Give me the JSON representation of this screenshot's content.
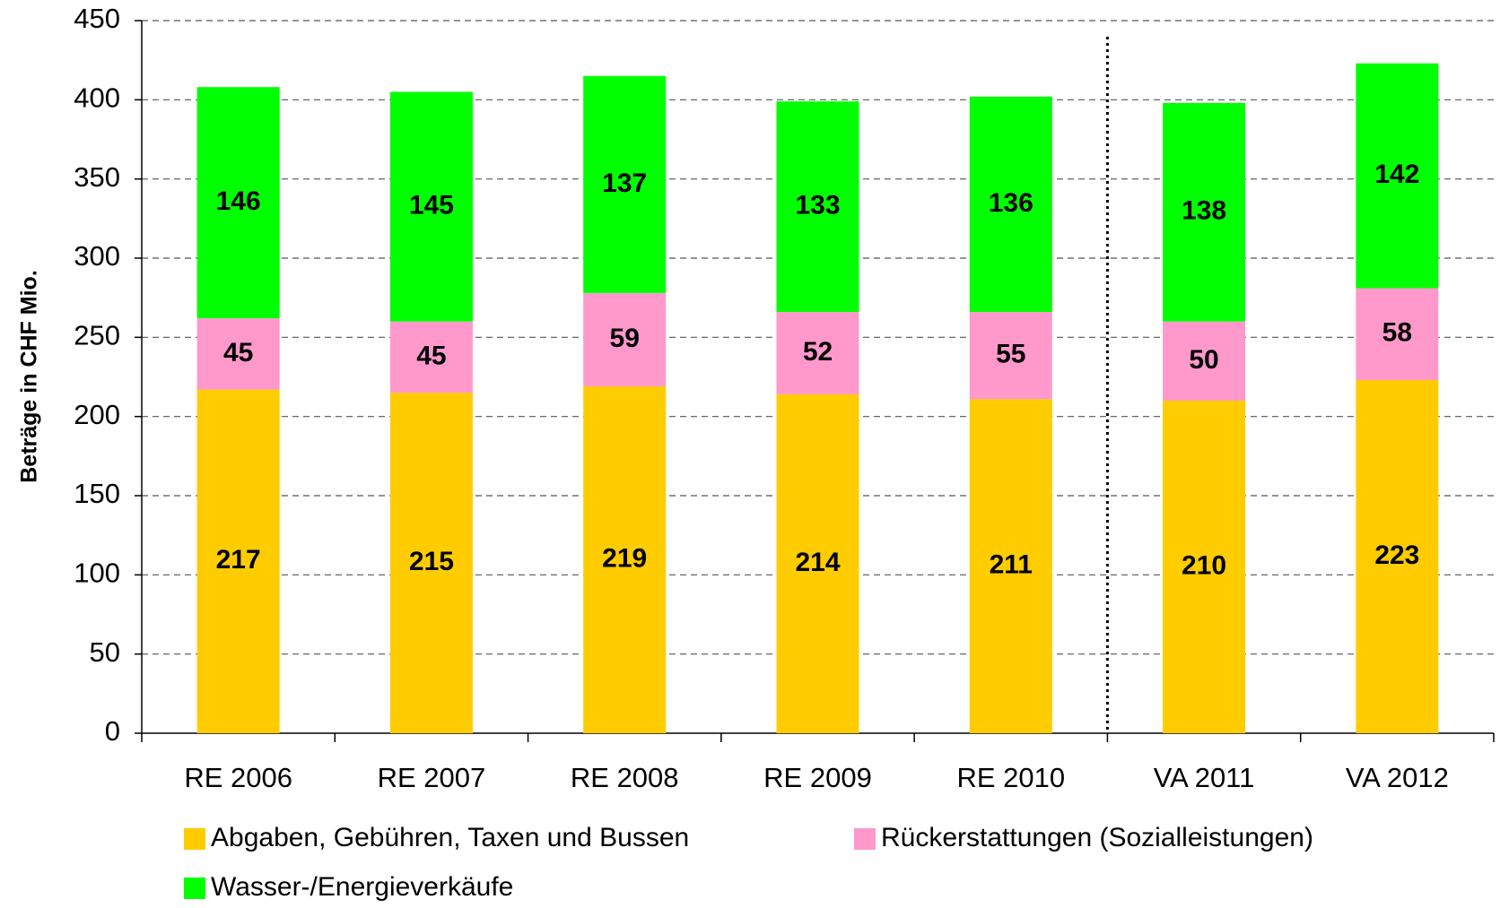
{
  "chart_data": {
    "type": "stacked_bar",
    "y_label": "Beträge in CHF Mio.",
    "categories": [
      "RE 2006",
      "RE 2007",
      "RE 2008",
      "RE 2009",
      "RE 2010",
      "VA 2011",
      "VA 2012"
    ],
    "series": [
      {
        "name": "Abgaben, Gebühren, Taxen und Bussen",
        "color": "#ffcc00",
        "values": [
          217,
          215,
          219,
          214,
          211,
          210,
          223
        ]
      },
      {
        "name": "Rückerstattungen (Sozialleistungen)",
        "color": "#ff99cc",
        "values": [
          45,
          45,
          59,
          52,
          55,
          50,
          58
        ]
      },
      {
        "name": "Wasser-/Energieverkäufe",
        "color": "#00ff00",
        "values": [
          146,
          145,
          137,
          133,
          136,
          138,
          142
        ]
      }
    ],
    "ylim": [
      0,
      450
    ],
    "yticks": [
      0,
      50,
      100,
      150,
      200,
      250,
      300,
      350,
      400,
      450
    ],
    "grid": true
  }
}
